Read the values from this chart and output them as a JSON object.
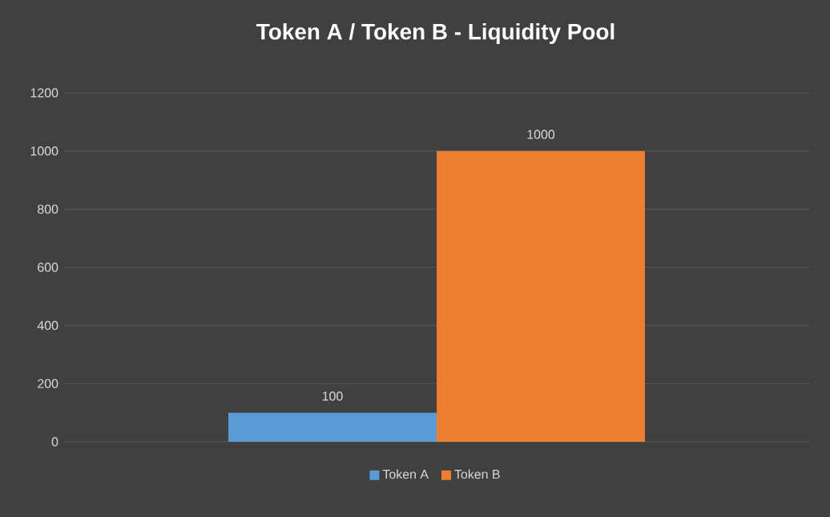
{
  "chart_data": {
    "type": "bar",
    "title": "Token  A / Token  B - Liquidity Pool",
    "categories": [
      null
    ],
    "series": [
      {
        "name": "Token A",
        "color": "#5b9bd5",
        "values": [
          100
        ]
      },
      {
        "name": "Token B",
        "color": "#ed7d31",
        "values": [
          1000
        ]
      }
    ],
    "ylim": [
      0,
      1200
    ],
    "yticks": [
      0,
      200,
      400,
      600,
      800,
      1000,
      1200
    ],
    "grid": "y",
    "legend": "bottom",
    "data_labels": true
  }
}
